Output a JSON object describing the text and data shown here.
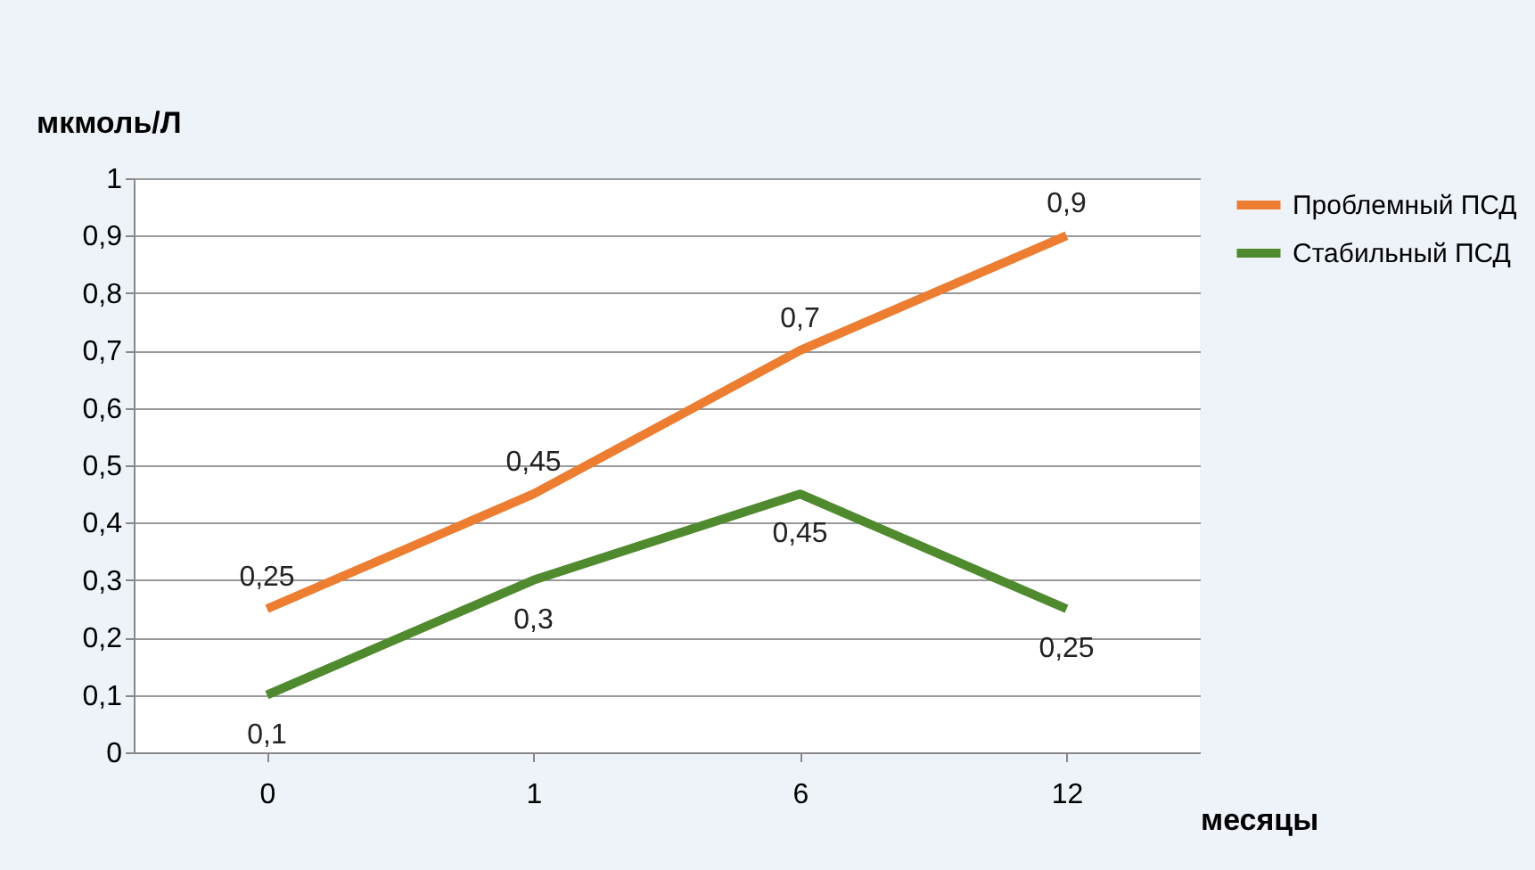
{
  "chart_data": {
    "type": "line",
    "ylabel": "мкмоль/Л",
    "xlabel": "месяцы",
    "categories": [
      "0",
      "1",
      "6",
      "12"
    ],
    "ylim": [
      0,
      1
    ],
    "yticks": [
      0,
      {
        "value": 0.1,
        "label": "0,1"
      },
      {
        "value": 0.2,
        "label": "0,2"
      },
      {
        "value": 0.3,
        "label": "0,3"
      },
      {
        "value": 0.4,
        "label": "0,4"
      },
      {
        "value": 0.5,
        "label": "0,5"
      },
      {
        "value": 0.6,
        "label": "0,6"
      },
      {
        "value": 0.7,
        "label": "0,7"
      },
      {
        "value": 0.8,
        "label": "0,8"
      },
      {
        "value": 0.9,
        "label": "0,9"
      },
      1
    ],
    "grid": "y",
    "legend": "right",
    "series": [
      {
        "name": "Проблемный ПСД",
        "color": "#ed7d31",
        "values": [
          0.25,
          0.45,
          0.7,
          0.9
        ],
        "value_labels": [
          "0,25",
          "0,45",
          "0,7",
          "0,9"
        ]
      },
      {
        "name": "Стабильный ПСД",
        "color": "#4f8a2e",
        "values": [
          0.1,
          0.3,
          0.45,
          0.25
        ],
        "value_labels": [
          "0,1",
          "0,3",
          "0,45",
          "0,25"
        ]
      }
    ]
  }
}
